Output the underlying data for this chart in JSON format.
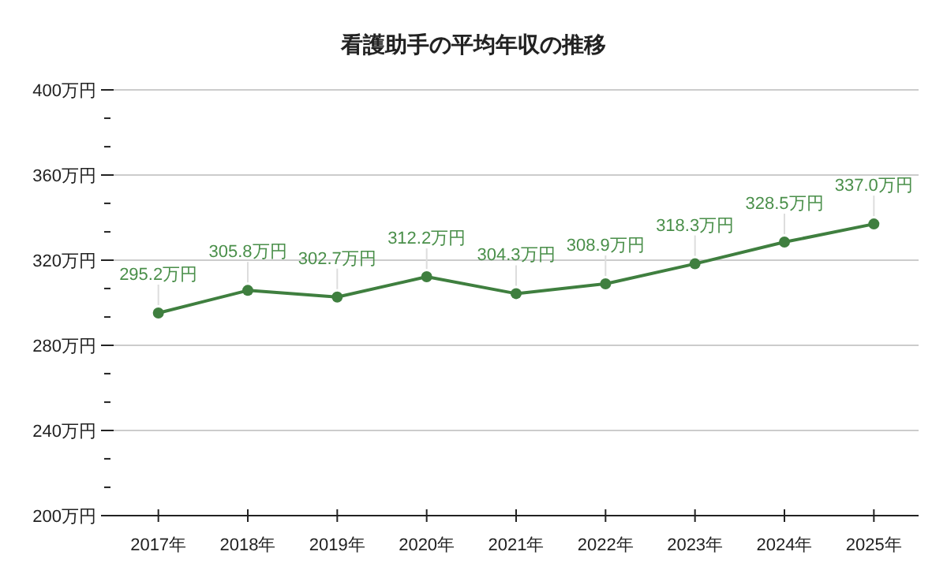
{
  "chart_data": {
    "type": "line",
    "title": "看護助手の平均年収の推移",
    "categories": [
      "2017年",
      "2018年",
      "2019年",
      "2020年",
      "2021年",
      "2022年",
      "2023年",
      "2024年",
      "2025年"
    ],
    "series": [
      {
        "color": "#3f7f3f",
        "values": [
          295.2,
          305.8,
          302.7,
          312.2,
          304.3,
          308.9,
          318.3,
          328.5,
          337.0
        ],
        "value_labels": [
          "295.2万円",
          "305.8万円",
          "302.7万円",
          "312.2万円",
          "304.3万円",
          "308.9万円",
          "318.3万円",
          "328.5万円",
          "337.0万円"
        ]
      }
    ],
    "ylim": [
      200,
      400
    ],
    "yticks": [
      {
        "value": 200,
        "label": "200万円"
      },
      {
        "value": 213.3,
        "label": null
      },
      {
        "value": 226.7,
        "label": null
      },
      {
        "value": 240,
        "label": "240万円"
      },
      {
        "value": 253.3,
        "label": null
      },
      {
        "value": 266.7,
        "label": null
      },
      {
        "value": 280,
        "label": "280万円"
      },
      {
        "value": 293.3,
        "label": null
      },
      {
        "value": 306.7,
        "label": null
      },
      {
        "value": 320,
        "label": "320万円"
      },
      {
        "value": 333.3,
        "label": null
      },
      {
        "value": 346.7,
        "label": null
      },
      {
        "value": 360,
        "label": "360万円"
      },
      {
        "value": 373.3,
        "label": null
      },
      {
        "value": 386.7,
        "label": null
      },
      {
        "value": 400,
        "label": "400万円"
      }
    ],
    "grid": "y",
    "marker": "circle",
    "line_style": "solid"
  }
}
